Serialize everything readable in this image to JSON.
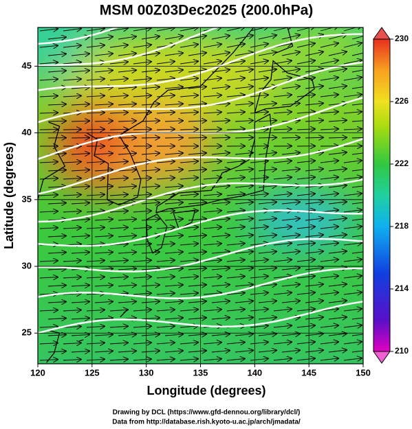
{
  "title": "MSM 00Z03Dec2025 (200.0hPa)",
  "x_axis": {
    "label": "Longitude (degrees)",
    "lim": [
      120,
      150
    ],
    "ticks": [
      120,
      125,
      130,
      135,
      140,
      145,
      150
    ]
  },
  "y_axis": {
    "label": "Latitude  (degrees)",
    "lim": [
      22.7,
      47.9
    ],
    "ticks": [
      25,
      30,
      35,
      40,
      45
    ]
  },
  "colorbar": {
    "lim": [
      210,
      230
    ],
    "ticks": [
      210,
      214,
      218,
      222,
      226,
      230
    ]
  },
  "credits": [
    "Drawing by DCL (https://www.gfd-dennou.org/library/dcl/)",
    "Data from http://database.rish.kyoto-u.ac.jp/arch/jmadata/"
  ]
}
